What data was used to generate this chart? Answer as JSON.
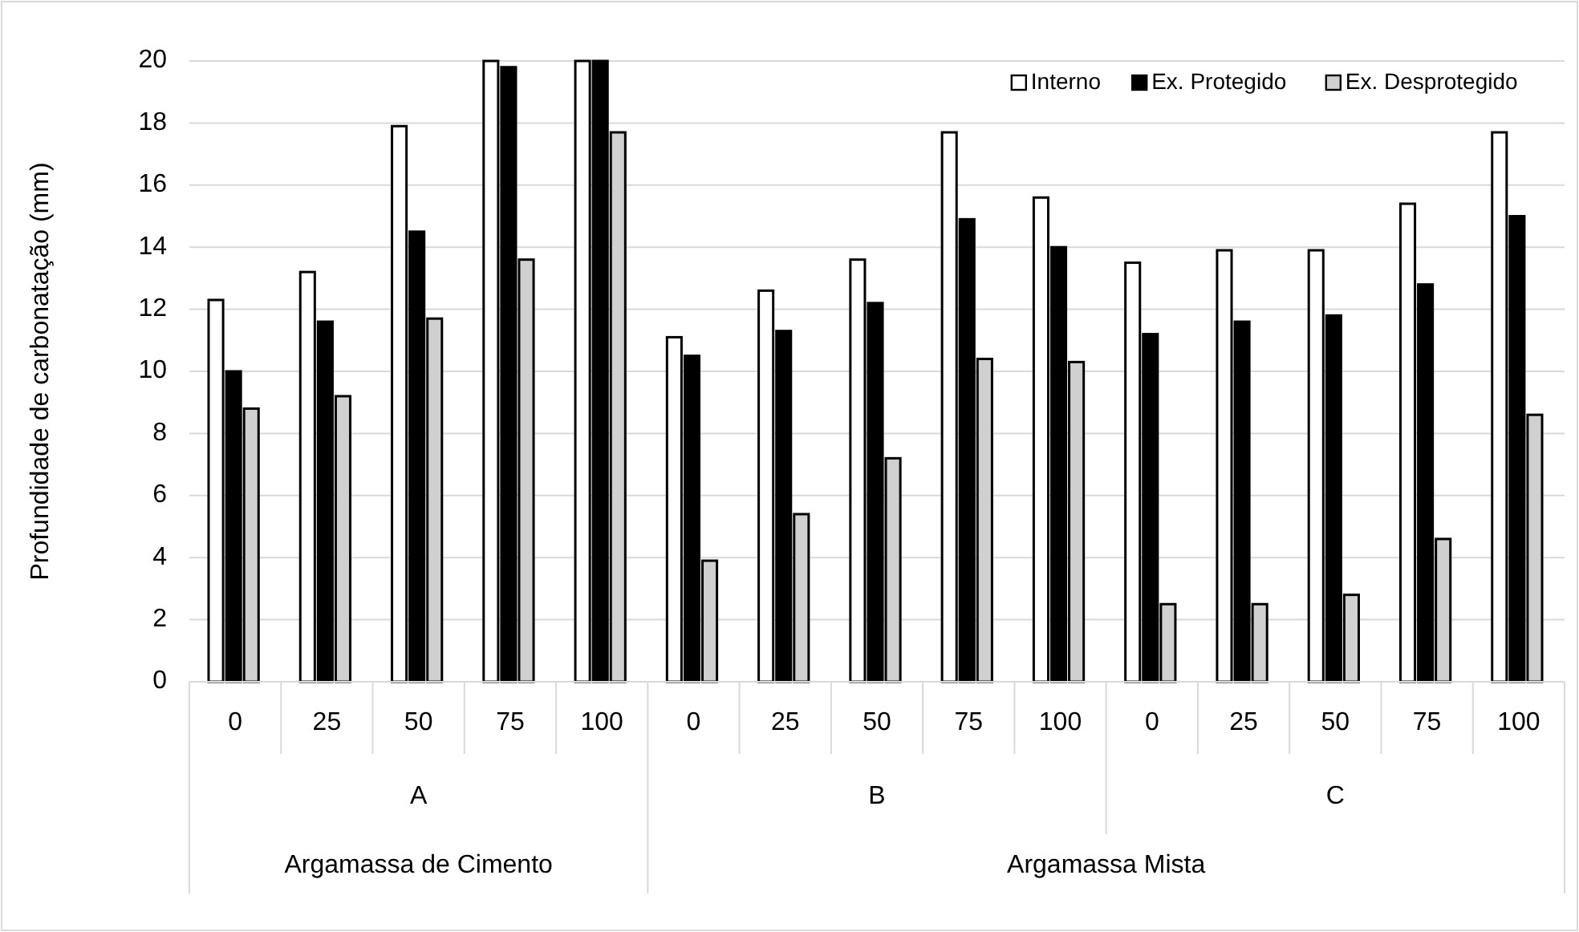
{
  "chart_data": {
    "type": "bar",
    "ylabel": "Profundidade de carbonatação (mm)",
    "categories": [
      "0",
      "25",
      "50",
      "75",
      "100",
      "0",
      "25",
      "50",
      "75",
      "100",
      "0",
      "25",
      "50",
      "75",
      "100"
    ],
    "series": [
      {
        "name": "Interno",
        "color": "#ffffff",
        "values": [
          12.3,
          13.2,
          17.9,
          20,
          20,
          11.1,
          12.6,
          13.6,
          17.7,
          15.6,
          13.5,
          13.9,
          13.9,
          15.4,
          17.7
        ]
      },
      {
        "name": "Ex. Protegido",
        "color": "#000000",
        "values": [
          10.0,
          11.6,
          14.5,
          19.8,
          20,
          10.5,
          11.3,
          12.2,
          14.9,
          14.0,
          11.2,
          11.6,
          11.8,
          12.8,
          15.0
        ]
      },
      {
        "name": "Ex. Desprotegido",
        "color": "#d0d0d0",
        "values": [
          8.8,
          9.2,
          11.7,
          13.6,
          17.7,
          3.9,
          5.4,
          7.2,
          10.4,
          10.3,
          2.5,
          2.5,
          2.8,
          4.6,
          8.6
        ]
      }
    ],
    "annotations": [
      "A",
      "B",
      "C",
      "Argamassa de Cimento",
      "Argamassa Mista"
    ],
    "ylim": [
      0,
      20
    ],
    "yticks": [
      0,
      2,
      4,
      6,
      8,
      10,
      12,
      14,
      16,
      18,
      20
    ],
    "grid": "y",
    "legend": "top right"
  }
}
